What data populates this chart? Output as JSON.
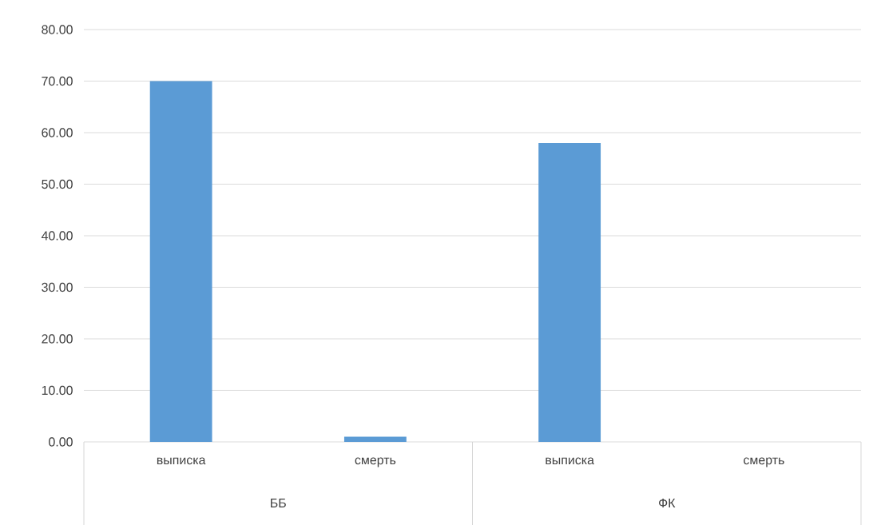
{
  "chart_data": {
    "type": "bar",
    "categories": [
      "выписка",
      "смерть",
      "выписка",
      "смерть"
    ],
    "values": [
      70,
      1,
      58,
      0
    ],
    "color": "#5b9bd5",
    "ylim": [
      0,
      80
    ],
    "yticks": [
      {
        "value": 0,
        "label": "0.00"
      },
      {
        "value": 10,
        "label": "10.00"
      },
      {
        "value": 20,
        "label": "20.00"
      },
      {
        "value": 30,
        "label": "30.00"
      },
      {
        "value": 40,
        "label": "40.00"
      },
      {
        "value": 50,
        "label": "50.00"
      },
      {
        "value": 60,
        "label": "60.00"
      },
      {
        "value": 70,
        "label": "70.00"
      },
      {
        "value": 80,
        "label": "80.00"
      }
    ],
    "grid": "y",
    "annotations": [
      "ББ",
      "ФК"
    ]
  }
}
